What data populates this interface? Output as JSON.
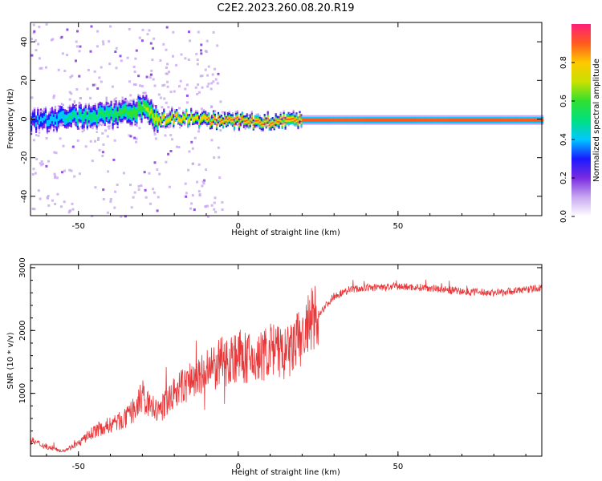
{
  "title": "C2E2.2023.260.08.20.R19",
  "chart_data": [
    {
      "type": "heatmap",
      "panel": "spectrogram",
      "xlabel": "Height of straight line (km)",
      "ylabel": "Frequency (Hz)",
      "xlim": [
        -65,
        95
      ],
      "ylim": [
        -50,
        50
      ],
      "xticks": [
        -50,
        0,
        50
      ],
      "xtick_labels": [
        "-50",
        "0",
        "50"
      ],
      "yticks": [
        -40,
        -20,
        0,
        20,
        40
      ],
      "ytick_labels": [
        "-40",
        "-20",
        "0",
        "20",
        "40"
      ],
      "grid": false,
      "colormap": [
        "#ffffff",
        "#c8a8f0",
        "#7a2be0",
        "#1a1aff",
        "#00c8ff",
        "#00e080",
        "#30e030",
        "#c8e000",
        "#ffc800",
        "#ff5a1e",
        "#ff1e78"
      ],
      "colorbar": {
        "label": "Normalized spectral amplitude",
        "range": [
          0,
          1
        ],
        "ticks": [
          0.0,
          0.2,
          0.4,
          0.6,
          0.8
        ],
        "tick_labels": [
          "0.0",
          "0.2",
          "0.4",
          "0.6",
          "0.8"
        ]
      },
      "ridge": {
        "description_free": true,
        "x": [
          -65,
          -60,
          -55,
          -50,
          -45,
          -40,
          -35,
          -30,
          -25,
          -20,
          -15,
          -10,
          -5,
          0,
          5,
          10,
          15,
          20,
          30,
          50,
          70,
          90,
          95
        ],
        "frequency": [
          -1,
          0,
          1,
          2,
          2,
          3,
          4,
          6,
          0,
          1,
          1,
          0,
          -1,
          0,
          -1,
          -1,
          0,
          0,
          0,
          0,
          0,
          0,
          0
        ],
        "amplitude": [
          0.35,
          0.4,
          0.45,
          0.5,
          0.55,
          0.55,
          0.6,
          0.65,
          0.75,
          0.85,
          0.8,
          0.85,
          0.85,
          0.9,
          0.9,
          0.85,
          0.9,
          0.95,
          0.95,
          0.95,
          0.95,
          0.95,
          0.95
        ]
      }
    },
    {
      "type": "line",
      "panel": "snr",
      "xlabel": "Height of straight line (km)",
      "ylabel": "SNR (10 * v/v)",
      "xlim": [
        -65,
        95
      ],
      "ylim": [
        0,
        3050
      ],
      "xticks": [
        -50,
        0,
        50
      ],
      "xtick_labels": [
        "-50",
        "0",
        "50"
      ],
      "yticks": [
        1000,
        2000,
        3000
      ],
      "ytick_labels": [
        "1000",
        "2000",
        "3000"
      ],
      "grid": false,
      "color": "#e8383a",
      "series": [
        {
          "x": [
            -65,
            -60,
            -55,
            -50,
            -45,
            -40,
            -35,
            -30,
            -25,
            -20,
            -15,
            -10,
            -5,
            0,
            5,
            10,
            15,
            20,
            25,
            30,
            35,
            40,
            50,
            60,
            70,
            80,
            90,
            95
          ],
          "values": [
            250,
            150,
            80,
            200,
            400,
            500,
            600,
            900,
            700,
            1000,
            1200,
            1300,
            1500,
            1600,
            1500,
            1700,
            1600,
            1900,
            2250,
            2550,
            2650,
            2680,
            2700,
            2680,
            2620,
            2600,
            2650,
            2680
          ]
        }
      ]
    }
  ]
}
